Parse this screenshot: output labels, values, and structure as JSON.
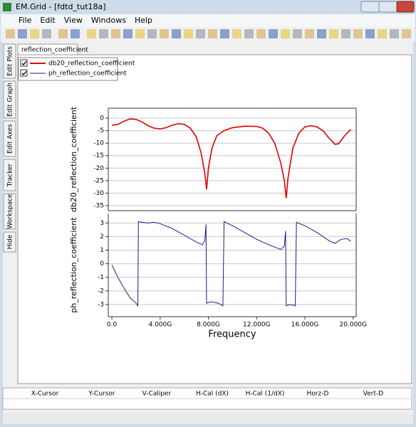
{
  "window": {
    "title": "EM.Grid - [fdtd_tut18a]"
  },
  "menu": [
    "File",
    "Edit",
    "View",
    "Windows",
    "Help"
  ],
  "side_tabs": [
    "Edit Plots",
    "Edit Graph",
    "Edit Axes",
    "Tracker",
    "Workspace",
    "Hide"
  ],
  "tab": "reflection_coefficient",
  "chart_data": [
    {
      "type": "line",
      "ylabel": "db20_reflection_coefficient",
      "x": [
        0,
        0.5,
        1,
        1.5,
        2,
        2.5,
        3,
        3.5,
        4,
        4.5,
        5,
        5.5,
        6,
        6.5,
        7,
        7.4,
        7.7,
        7.85,
        8,
        8.3,
        8.7,
        9.3,
        10,
        11,
        12,
        12.5,
        13,
        13.5,
        14,
        14.3,
        14.45,
        14.6,
        15,
        15.5,
        16,
        16.5,
        17,
        17.5,
        18,
        18.5,
        18.8,
        19.3,
        19.8
      ],
      "series": [
        {
          "name": "db20_reflection_coefficient",
          "color": "#e00000",
          "values": [
            -2.8,
            -2.5,
            -1.2,
            -0.3,
            -0.5,
            -1.5,
            -3,
            -4,
            -4.3,
            -3.8,
            -2.8,
            -2.2,
            -2.5,
            -4,
            -7.5,
            -14,
            -22,
            -28.5,
            -20,
            -12,
            -7,
            -5,
            -3.8,
            -3.2,
            -3.3,
            -4,
            -6,
            -10,
            -18,
            -25,
            -32,
            -24,
            -12,
            -6,
            -3.5,
            -3,
            -3.5,
            -5,
            -8,
            -10.5,
            -10.2,
            -7,
            -4.5
          ]
        }
      ],
      "xlim": [
        -0.3,
        20.25
      ],
      "ylim": [
        -37,
        4
      ],
      "yticks": [
        0,
        -5,
        -10,
        -15,
        -20,
        -25,
        -30,
        -35
      ],
      "grid": true
    },
    {
      "type": "line",
      "ylabel": "ph_reflection_coefficient",
      "xlabel": "Frequency",
      "x": [
        0,
        0.5,
        1,
        1.5,
        2,
        2.15,
        2.2,
        2.5,
        3,
        3.5,
        4,
        5,
        6,
        7,
        7.5,
        7.7,
        7.8,
        7.85,
        8.2,
        8.8,
        9.2,
        9.3,
        10,
        11,
        12,
        13,
        14,
        14.3,
        14.4,
        14.45,
        14.8,
        15.2,
        15.3,
        16,
        17,
        18,
        18.5,
        19,
        19.5,
        19.8
      ],
      "series": [
        {
          "name": "ph_reflection_coefficient",
          "color": "#1c1c8c",
          "values": [
            -0.1,
            -1,
            -1.8,
            -2.5,
            -2.9,
            -3.1,
            3.1,
            3.05,
            3,
            3.05,
            2.95,
            2.6,
            2.1,
            1.6,
            1.4,
            1.7,
            2.9,
            -2.9,
            -2.8,
            -2.9,
            -3.1,
            3.1,
            2.8,
            2.3,
            1.8,
            1.4,
            1.05,
            1.3,
            2.4,
            -3.1,
            -3,
            -3.1,
            3.05,
            2.8,
            2.3,
            1.7,
            1.5,
            1.8,
            1.85,
            1.65
          ]
        }
      ],
      "xlim": [
        -0.3,
        20.25
      ],
      "ylim": [
        -3.9,
        3.7
      ],
      "yticks": [
        3,
        2,
        1,
        0,
        -1,
        -2,
        -3
      ],
      "xticks": [
        {
          "value": 0,
          "label": "0.0"
        },
        {
          "value": 4,
          "label": "4.000G"
        },
        {
          "value": 8,
          "label": "8.000G"
        },
        {
          "value": 12,
          "label": "12.000G"
        },
        {
          "value": 16,
          "label": "16.000G"
        },
        {
          "value": 20,
          "label": "20.000G"
        }
      ],
      "grid": true
    }
  ],
  "status_columns": [
    "X-Cursor",
    "Y-Cursor",
    "V-Caliper",
    "H-Cal (dX)",
    "H-Cal (1/dX)",
    "Horz-D",
    "Vert-D"
  ]
}
